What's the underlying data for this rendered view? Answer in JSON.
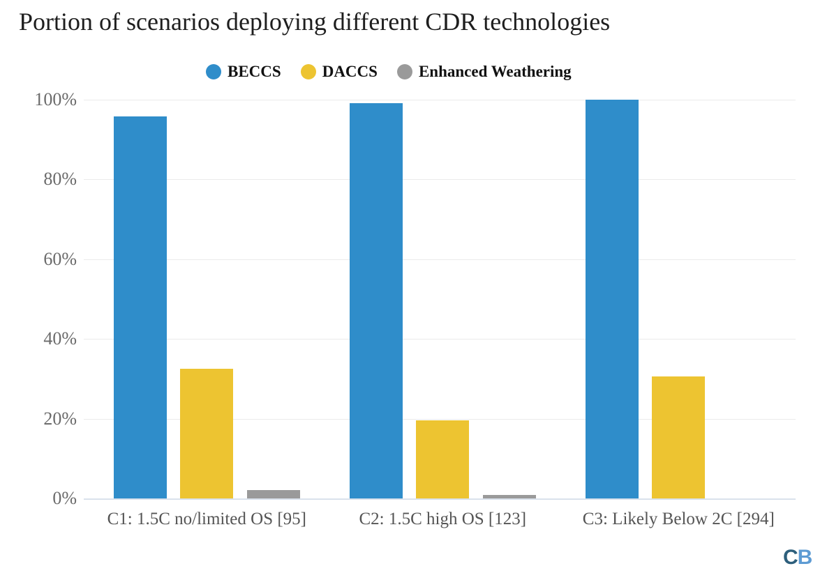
{
  "chart_data": {
    "type": "bar",
    "title": "Portion of scenarios deploying different CDR technologies",
    "categories": [
      "C1: 1.5C no/limited OS [95]",
      "C2: 1.5C high OS [123]",
      "C3: Likely Below 2C [294]"
    ],
    "series": [
      {
        "name": "BECCS",
        "color": "#2F8DCA",
        "values": [
          95.8,
          99.2,
          100.0
        ]
      },
      {
        "name": "DACCS",
        "color": "#EDC431",
        "values": [
          32.6,
          19.5,
          30.6
        ]
      },
      {
        "name": "Enhanced Weathering",
        "color": "#9A9A9A",
        "values": [
          2.1,
          0.8,
          0.0
        ]
      }
    ],
    "xlabel": "",
    "ylabel": "",
    "ylim": [
      0,
      100
    ],
    "y_axis_ticks": [
      {
        "label": "100%",
        "value": 100
      },
      {
        "label": "80%",
        "value": 80
      },
      {
        "label": "60%",
        "value": 60
      },
      {
        "label": "40%",
        "value": 40
      },
      {
        "label": "20%",
        "value": 20
      },
      {
        "label": "0%",
        "value": 0
      }
    ],
    "grid": true,
    "legend_position": "top"
  },
  "colors": {
    "title_text": "#1e1e1e",
    "ytick_text": "#6b6b6b",
    "xtick_text": "#555555",
    "gridline": "#ebebeb",
    "axis_line": "#d9e2ec",
    "background": "#ffffff"
  },
  "branding": {
    "letters": [
      {
        "text": "C",
        "color": "#2d5f7c"
      },
      {
        "text": "B",
        "color": "#5d9bd3"
      }
    ]
  }
}
